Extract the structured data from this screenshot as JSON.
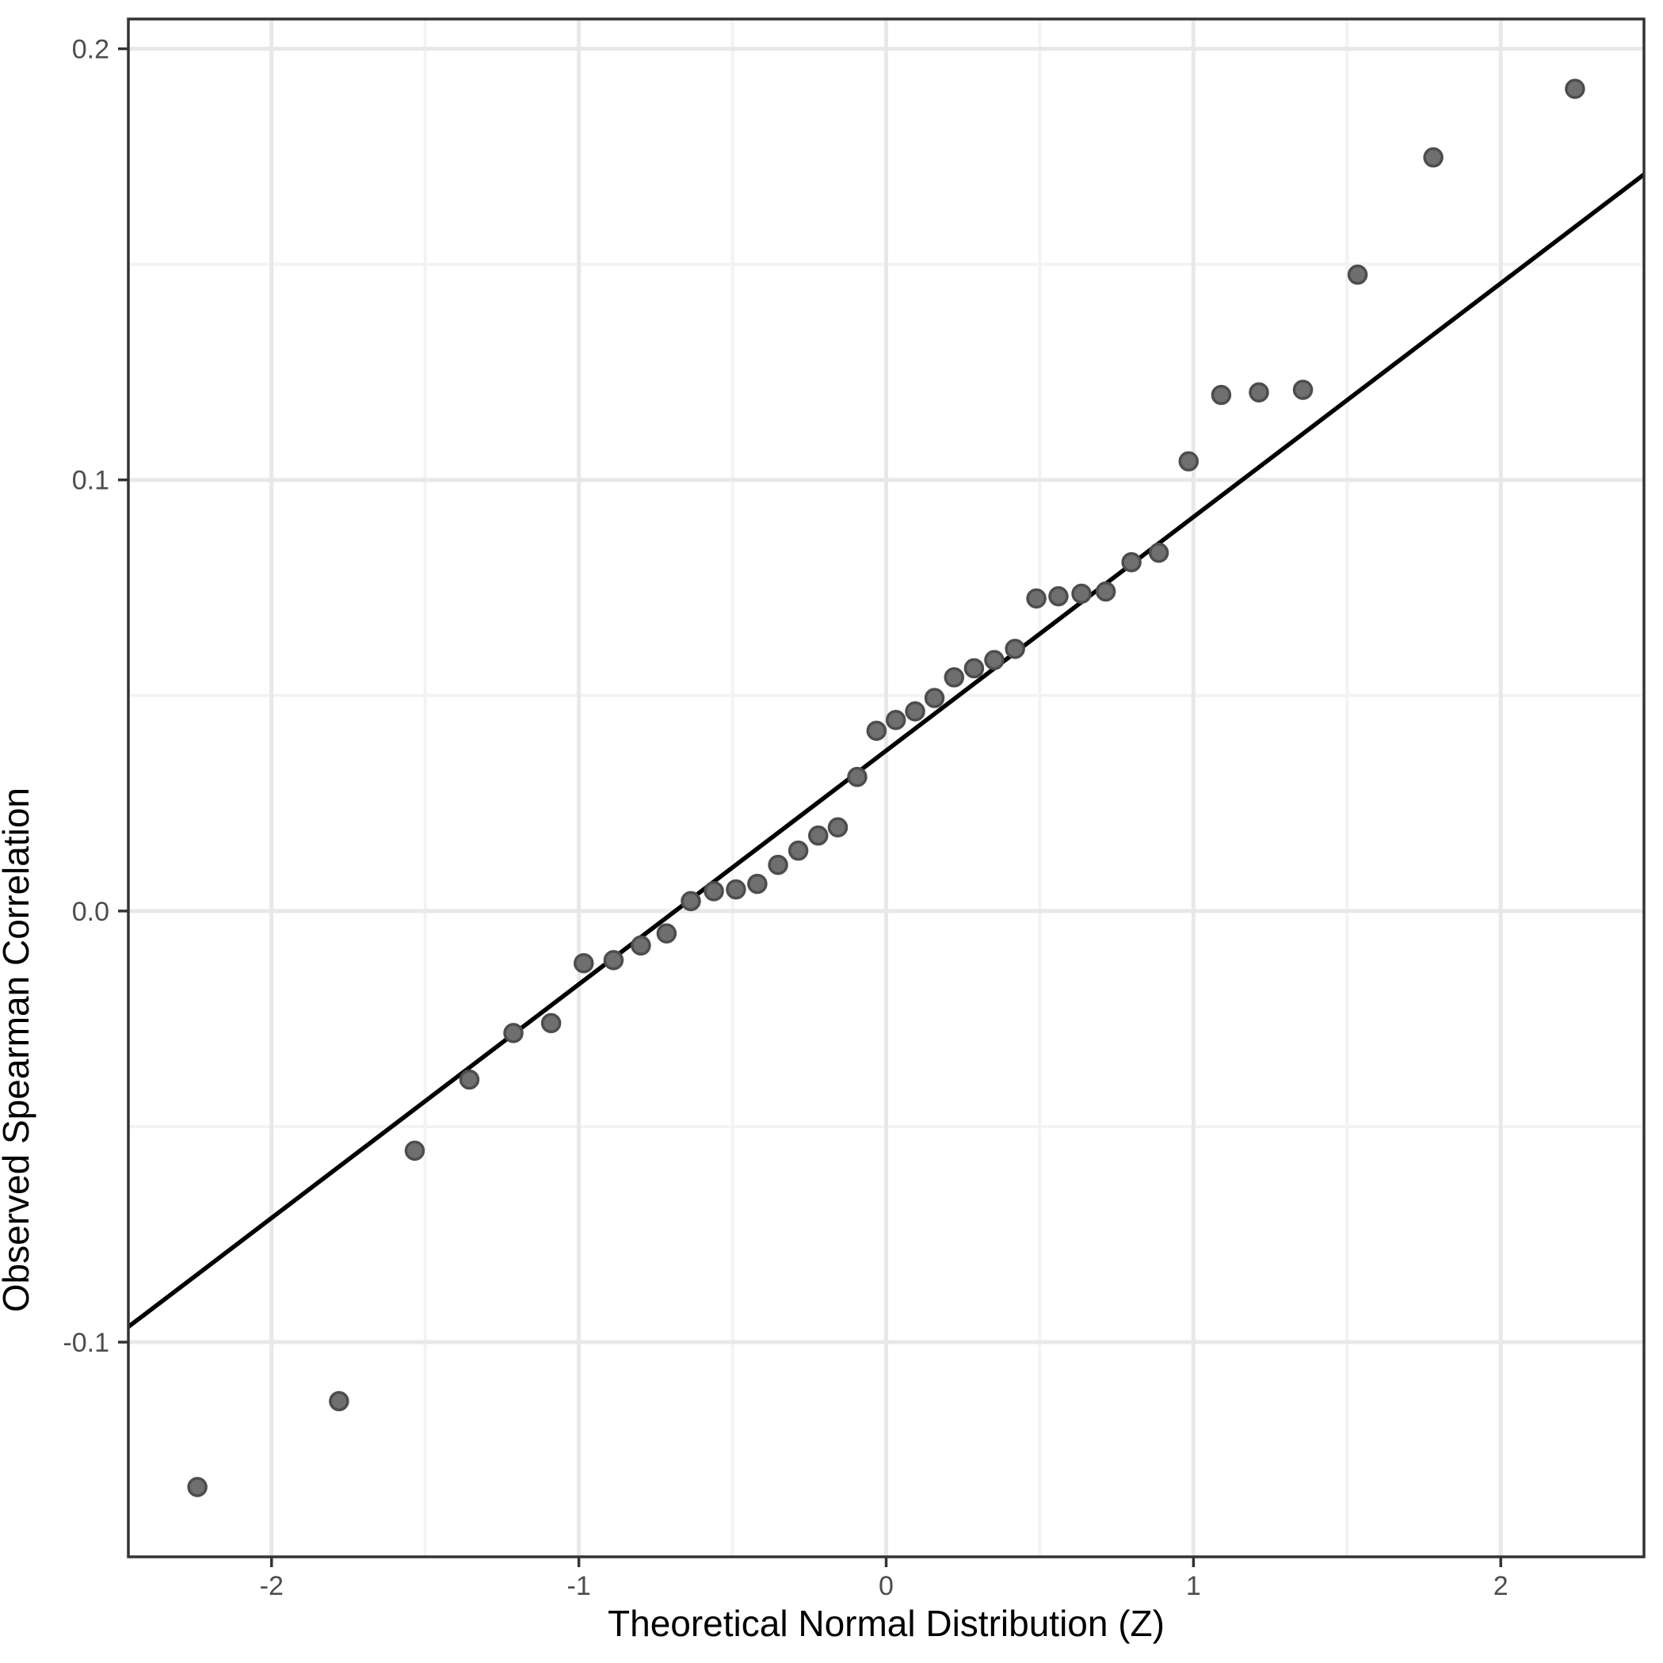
{
  "chart_data": {
    "type": "scatter",
    "subtype": "qq-plot",
    "title": "",
    "xlabel": "Theoretical Normal Distribution (Z)",
    "ylabel": "Observed Spearman Correlation",
    "xlim": [
      -2.466,
      2.466
    ],
    "ylim": [
      -0.1498,
      0.2069
    ],
    "x_major_ticks": [
      -2,
      -1,
      0,
      1,
      2
    ],
    "x_tick_labels": [
      "-2",
      "-1",
      "0",
      "1",
      "2"
    ],
    "x_minor_ticks": [
      -1.5,
      -0.5,
      0.5,
      1.5
    ],
    "y_major_ticks": [
      -0.1,
      0.0,
      0.1,
      0.2
    ],
    "y_tick_labels": [
      "-0.1",
      "0.0",
      "0.1",
      "0.2"
    ],
    "y_minor_ticks": [
      -0.05,
      0.05,
      0.15
    ],
    "grid": true,
    "legend": false,
    "points": [
      [
        -2.2414,
        -0.1336
      ],
      [
        -1.7805,
        -0.1137
      ],
      [
        -1.5341,
        -0.0556
      ],
      [
        -1.3562,
        -0.0391
      ],
      [
        -1.213,
        -0.0283
      ],
      [
        -1.0903,
        -0.026
      ],
      [
        -0.9842,
        -0.0121
      ],
      [
        -0.8871,
        -0.0114
      ],
      [
        -0.7982,
        -0.008
      ],
      [
        -0.7145,
        -0.0052
      ],
      [
        -0.6356,
        0.0023
      ],
      [
        -0.5606,
        0.0046
      ],
      [
        -0.4888,
        0.005
      ],
      [
        -0.4193,
        0.0063
      ],
      [
        -0.3518,
        0.0107
      ],
      [
        -0.2859,
        0.014
      ],
      [
        -0.2211,
        0.0175
      ],
      [
        -0.1573,
        0.0194
      ],
      [
        -0.0942,
        0.0311
      ],
      [
        -0.0314,
        0.0418
      ],
      [
        0.0314,
        0.0443
      ],
      [
        0.0942,
        0.0463
      ],
      [
        0.1573,
        0.0494
      ],
      [
        0.2211,
        0.0542
      ],
      [
        0.2859,
        0.0563
      ],
      [
        0.3518,
        0.0582
      ],
      [
        0.4193,
        0.0608
      ],
      [
        0.4888,
        0.0725
      ],
      [
        0.5606,
        0.073
      ],
      [
        0.6356,
        0.0736
      ],
      [
        0.7145,
        0.0741
      ],
      [
        0.7982,
        0.0809
      ],
      [
        0.8871,
        0.0831
      ],
      [
        0.9842,
        0.1043
      ],
      [
        1.0903,
        0.1197
      ],
      [
        1.213,
        0.1203
      ],
      [
        1.3562,
        0.1209
      ],
      [
        1.5341,
        0.1476
      ],
      [
        1.7805,
        0.1748
      ],
      [
        2.2414,
        0.1907
      ]
    ],
    "reference_line": {
      "slope": 0.0542,
      "intercept": 0.0372
    },
    "style": {
      "background": "#ffffff",
      "panel_background": "#ffffff",
      "grid_major_color": "#e8e8e8",
      "grid_minor_color": "#f3f3f3",
      "panel_border_color": "#333333",
      "tick_color": "#333333",
      "tick_label_color": "#4d4d4d",
      "axis_title_color": "#000000",
      "point_fill": "#6f6f6f",
      "point_stroke": "#4d4d4d",
      "line_color": "#000000"
    }
  }
}
